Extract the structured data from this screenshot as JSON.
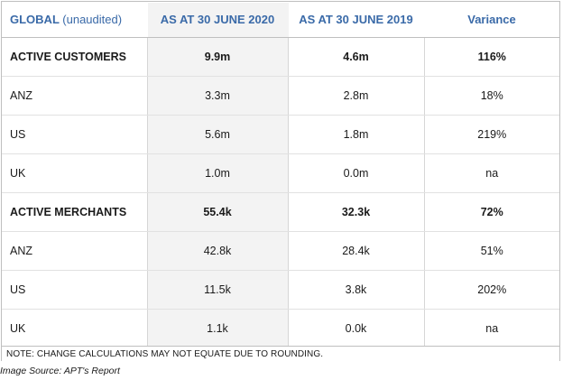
{
  "table": {
    "header": {
      "col0_main": "GLOBAL",
      "col0_sub": "(unaudited)",
      "col1": "AS AT 30 JUNE 2020",
      "col2": "AS AT 30 JUNE 2019",
      "col3": "Variance"
    },
    "rows": [
      {
        "label": "ACTIVE CUSTOMERS",
        "v2020": "9.9m",
        "v2019": "4.6m",
        "variance": "116%",
        "bold": true
      },
      {
        "label": "ANZ",
        "v2020": "3.3m",
        "v2019": "2.8m",
        "variance": "18%",
        "bold": false
      },
      {
        "label": "US",
        "v2020": "5.6m",
        "v2019": "1.8m",
        "variance": "219%",
        "bold": false
      },
      {
        "label": "UK",
        "v2020": "1.0m",
        "v2019": "0.0m",
        "variance": "na",
        "bold": false
      },
      {
        "label": "ACTIVE MERCHANTS",
        "v2020": "55.4k",
        "v2019": "32.3k",
        "variance": "72%",
        "bold": true
      },
      {
        "label": "ANZ",
        "v2020": "42.8k",
        "v2019": "28.4k",
        "variance": "51%",
        "bold": false
      },
      {
        "label": "US",
        "v2020": "11.5k",
        "v2019": "3.8k",
        "variance": "202%",
        "bold": false
      },
      {
        "label": "UK",
        "v2020": "1.1k",
        "v2019": "0.0k",
        "variance": "na",
        "bold": false
      }
    ],
    "note": "NOTE: CHANGE CALCULATIONS MAY NOT EQUATE DUE TO ROUNDING."
  },
  "caption": "Image Source: APT's Report",
  "colors": {
    "header_text": "#3a6aa8",
    "column_shade": "#f3f3f3",
    "border": "#bfbfbf"
  }
}
